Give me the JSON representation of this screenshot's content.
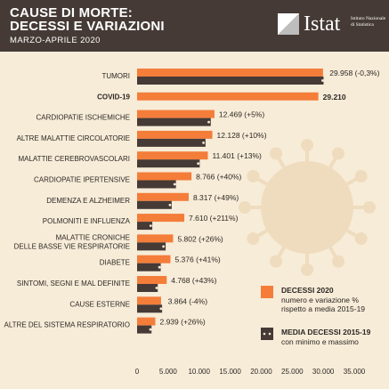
{
  "header": {
    "title_line1": "CAUSE DI MORTE:",
    "title_line2": "DECESSI E VARIAZIONI",
    "subtitle": "MARZO-APRILE 2020",
    "logo_word": "Istat",
    "logo_sub": "Istituto Nazionale di Statistica"
  },
  "colors": {
    "header_bg": "#453a35",
    "background": "#f7ecd8",
    "current": "#f47d3a",
    "average": "#453a35",
    "text": "#2d2724"
  },
  "legend": {
    "current_title": "DECESSI 2020",
    "current_text": "numero e variazione % rispetto a media 2015-19",
    "average_title": "MEDIA DECESSI 2015-19",
    "average_text": "con minimo e massimo"
  },
  "chart_data": {
    "type": "bar",
    "orientation": "horizontal",
    "title": "CAUSE DI MORTE: DECESSI E VARIAZIONI",
    "subtitle": "MARZO-APRILE 2020",
    "xlim": [
      0,
      35000
    ],
    "xticks": [
      0,
      5000,
      10000,
      15000,
      20000,
      25000,
      30000,
      35000
    ],
    "xtick_labels": [
      "0",
      "5.000",
      "10.000",
      "15.000",
      "20.000",
      "25.000",
      "30.000",
      "35.000"
    ],
    "categories": [
      "TUMORI",
      "COVID-19",
      "CARDIOPATIE ISCHEMICHE",
      "ALTRE MALATTIE CIRCOLATORIE",
      "MALATTIE CEREBROVASCOLARI",
      "CARDIOPATIE IPERTENSIVE",
      "DEMENZA E ALZHEIMER",
      "POLMONITI E INFLUENZA",
      "MALATTIE CRONICHE DELLE BASSE VIE RESPIRATORIE",
      "DIABETE",
      "SINTOMI, SEGNI E MAL DEFINITE",
      "CAUSE ESTERNE",
      "ALTRE DEL SISTEMA RESPIRATORIO"
    ],
    "category_lines": [
      [
        "TUMORI"
      ],
      [
        "COVID-19"
      ],
      [
        "CARDIOPATIE ISCHEMICHE"
      ],
      [
        "ALTRE MALATTIE CIRCOLATORIE"
      ],
      [
        "MALATTIE CEREBROVASCOLARI"
      ],
      [
        "CARDIOPATIE IPERTENSIVE"
      ],
      [
        "DEMENZA E ALZHEIMER"
      ],
      [
        "POLMONITI E INFLUENZA"
      ],
      [
        "MALATTIE CRONICHE",
        "DELLE BASSE VIE RESPIRATORIE"
      ],
      [
        "DIABETE"
      ],
      [
        "SINTOMI, SEGNI E MAL DEFINITE"
      ],
      [
        "CAUSE ESTERNE"
      ],
      [
        "ALTRE DEL SISTEMA RESPIRATORIO"
      ]
    ],
    "bold_categories": [
      "COVID-19"
    ],
    "series": [
      {
        "name": "DECESSI 2020",
        "values": [
          29958,
          29210,
          12469,
          12128,
          11401,
          8766,
          8317,
          7610,
          5802,
          5376,
          4768,
          3864,
          2939
        ],
        "labels": [
          "29.958 (-0,3%)",
          "29.210",
          "12.469 (+5%)",
          "12.128 (+10%)",
          "11.401 (+13%)",
          "8.766 (+40%)",
          "8.317 (+49%)",
          "7.610 (+211%)",
          "5.802 (+26%)",
          "5.376 (+41%)",
          "4.768 (+43%)",
          "3.864 (-4%)",
          "2.939 (+26%)"
        ]
      },
      {
        "name": "MEDIA DECESSI 2015-19",
        "values": [
          30050,
          null,
          11875,
          11025,
          10090,
          6260,
          5580,
          2450,
          4600,
          3810,
          3330,
          4030,
          2330
        ],
        "min": [
          29900,
          null,
          11550,
          10700,
          9850,
          6050,
          5300,
          2200,
          4250,
          3600,
          3150,
          3850,
          2150
        ],
        "max": [
          30300,
          null,
          12200,
          11300,
          10350,
          6450,
          5850,
          2900,
          4950,
          4000,
          3500,
          4250,
          2500
        ]
      }
    ]
  }
}
